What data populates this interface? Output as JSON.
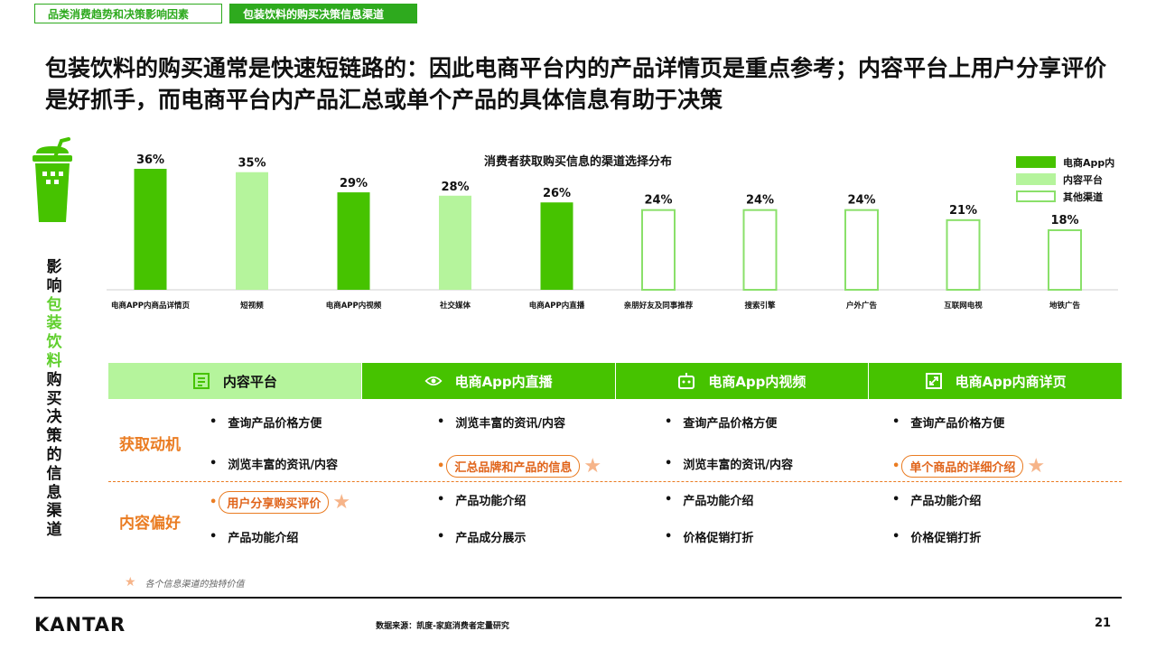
{
  "tabs": [
    "品类消费趋势和决策影响因素",
    "包装饮料的购买决策信息渠道"
  ],
  "headline": "包装饮料的购买通常是快速短链路的：因此电商平台内的产品详情页是重点参考；内容平台上用户分享评价是好抓手，而电商平台内产品汇总或单个产品的具体信息有助于决策",
  "side_label": {
    "chars": [
      "影",
      "响",
      "包",
      "装",
      "饮",
      "料",
      "购",
      "买",
      "决",
      "策",
      "的",
      "信",
      "息",
      "渠",
      "道"
    ],
    "green_chars": [
      2,
      3,
      4,
      5
    ]
  },
  "colors": {
    "ecommerce": "#46c300",
    "content": "#b5f49c",
    "other_stroke": "#8ae06a",
    "orange": "#ea7c22"
  },
  "chart_data": {
    "type": "bar",
    "title": "消费者获取购买信息的渠道选择分布",
    "categories": [
      "电商APP内商品详情页",
      "短视频",
      "电商APP内视频",
      "社交媒体",
      "电商APP内直播",
      "亲朋好友及同事推荐",
      "搜索引擎",
      "户外广告",
      "互联网电视",
      "地铁广告"
    ],
    "values": [
      36,
      35,
      29,
      28,
      26,
      24,
      24,
      24,
      21,
      18
    ],
    "value_labels": [
      "36%",
      "35%",
      "29%",
      "28%",
      "26%",
      "24%",
      "24%",
      "24%",
      "21%",
      "18%"
    ],
    "groups": [
      "电商App内",
      "内容平台",
      "电商App内",
      "内容平台",
      "电商App内",
      "其他渠道",
      "其他渠道",
      "其他渠道",
      "其他渠道",
      "其他渠道"
    ],
    "legend": [
      "电商App内",
      "内容平台",
      "其他渠道"
    ],
    "legend_position": "top-right",
    "ylim": [
      0,
      40
    ],
    "grid": false
  },
  "table": {
    "headers": [
      {
        "label": "内容平台",
        "icon": "document-icon"
      },
      {
        "label": "电商App内直播",
        "icon": "eye-icon"
      },
      {
        "label": "电商App内视频",
        "icon": "robot-icon"
      },
      {
        "label": "电商App内商详页",
        "icon": "expand-icon"
      }
    ],
    "row_labels": [
      "获取动机",
      "内容偏好"
    ],
    "cells": [
      [
        {
          "text": "查询产品价格方便",
          "highlight": false
        },
        {
          "text": "浏览丰富的资讯/内容",
          "highlight": false
        },
        {
          "text": "用户分享购买评价",
          "highlight": true
        },
        {
          "text": "产品功能介绍",
          "highlight": false
        }
      ],
      [
        {
          "text": "浏览丰富的资讯/内容",
          "highlight": false
        },
        {
          "text": "汇总品牌和产品的信息",
          "highlight": true
        },
        {
          "text": "产品功能介绍",
          "highlight": false
        },
        {
          "text": "产品成分展示",
          "highlight": false
        }
      ],
      [
        {
          "text": "查询产品价格方便",
          "highlight": false
        },
        {
          "text": "浏览丰富的资讯/内容",
          "highlight": false
        },
        {
          "text": "产品功能介绍",
          "highlight": false
        },
        {
          "text": "价格促销打折",
          "highlight": false
        }
      ],
      [
        {
          "text": "查询产品价格方便",
          "highlight": false
        },
        {
          "text": "单个商品的详细介绍",
          "highlight": true
        },
        {
          "text": "产品功能介绍",
          "highlight": false
        },
        {
          "text": "价格促销打折",
          "highlight": false
        }
      ]
    ]
  },
  "note": "各个信息渠道的独特价值",
  "footer": {
    "logo": "KANTAR",
    "source": "数据来源：凯度-家庭消费者定量研究",
    "page": "21"
  }
}
